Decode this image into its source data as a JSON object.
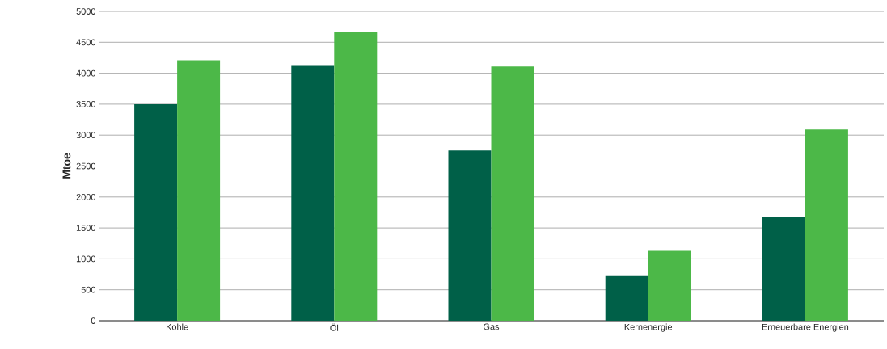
{
  "chart_data": {
    "type": "bar",
    "ylabel": "Mtoe",
    "categories": [
      "Kohle",
      "Öl",
      "Gas",
      "Kernenergie",
      "Erneuerbare Energien"
    ],
    "series": [
      {
        "color": "#006048",
        "values": [
          3500,
          4120,
          2750,
          720,
          1680
        ]
      },
      {
        "color": "#4cb848",
        "values": [
          4210,
          4670,
          4110,
          1130,
          3090
        ]
      }
    ],
    "ylim": [
      0,
      5000
    ],
    "yticks": [
      0,
      500,
      1000,
      1500,
      2000,
      2500,
      3000,
      3500,
      4000,
      4500,
      5000
    ],
    "grid": "y"
  }
}
